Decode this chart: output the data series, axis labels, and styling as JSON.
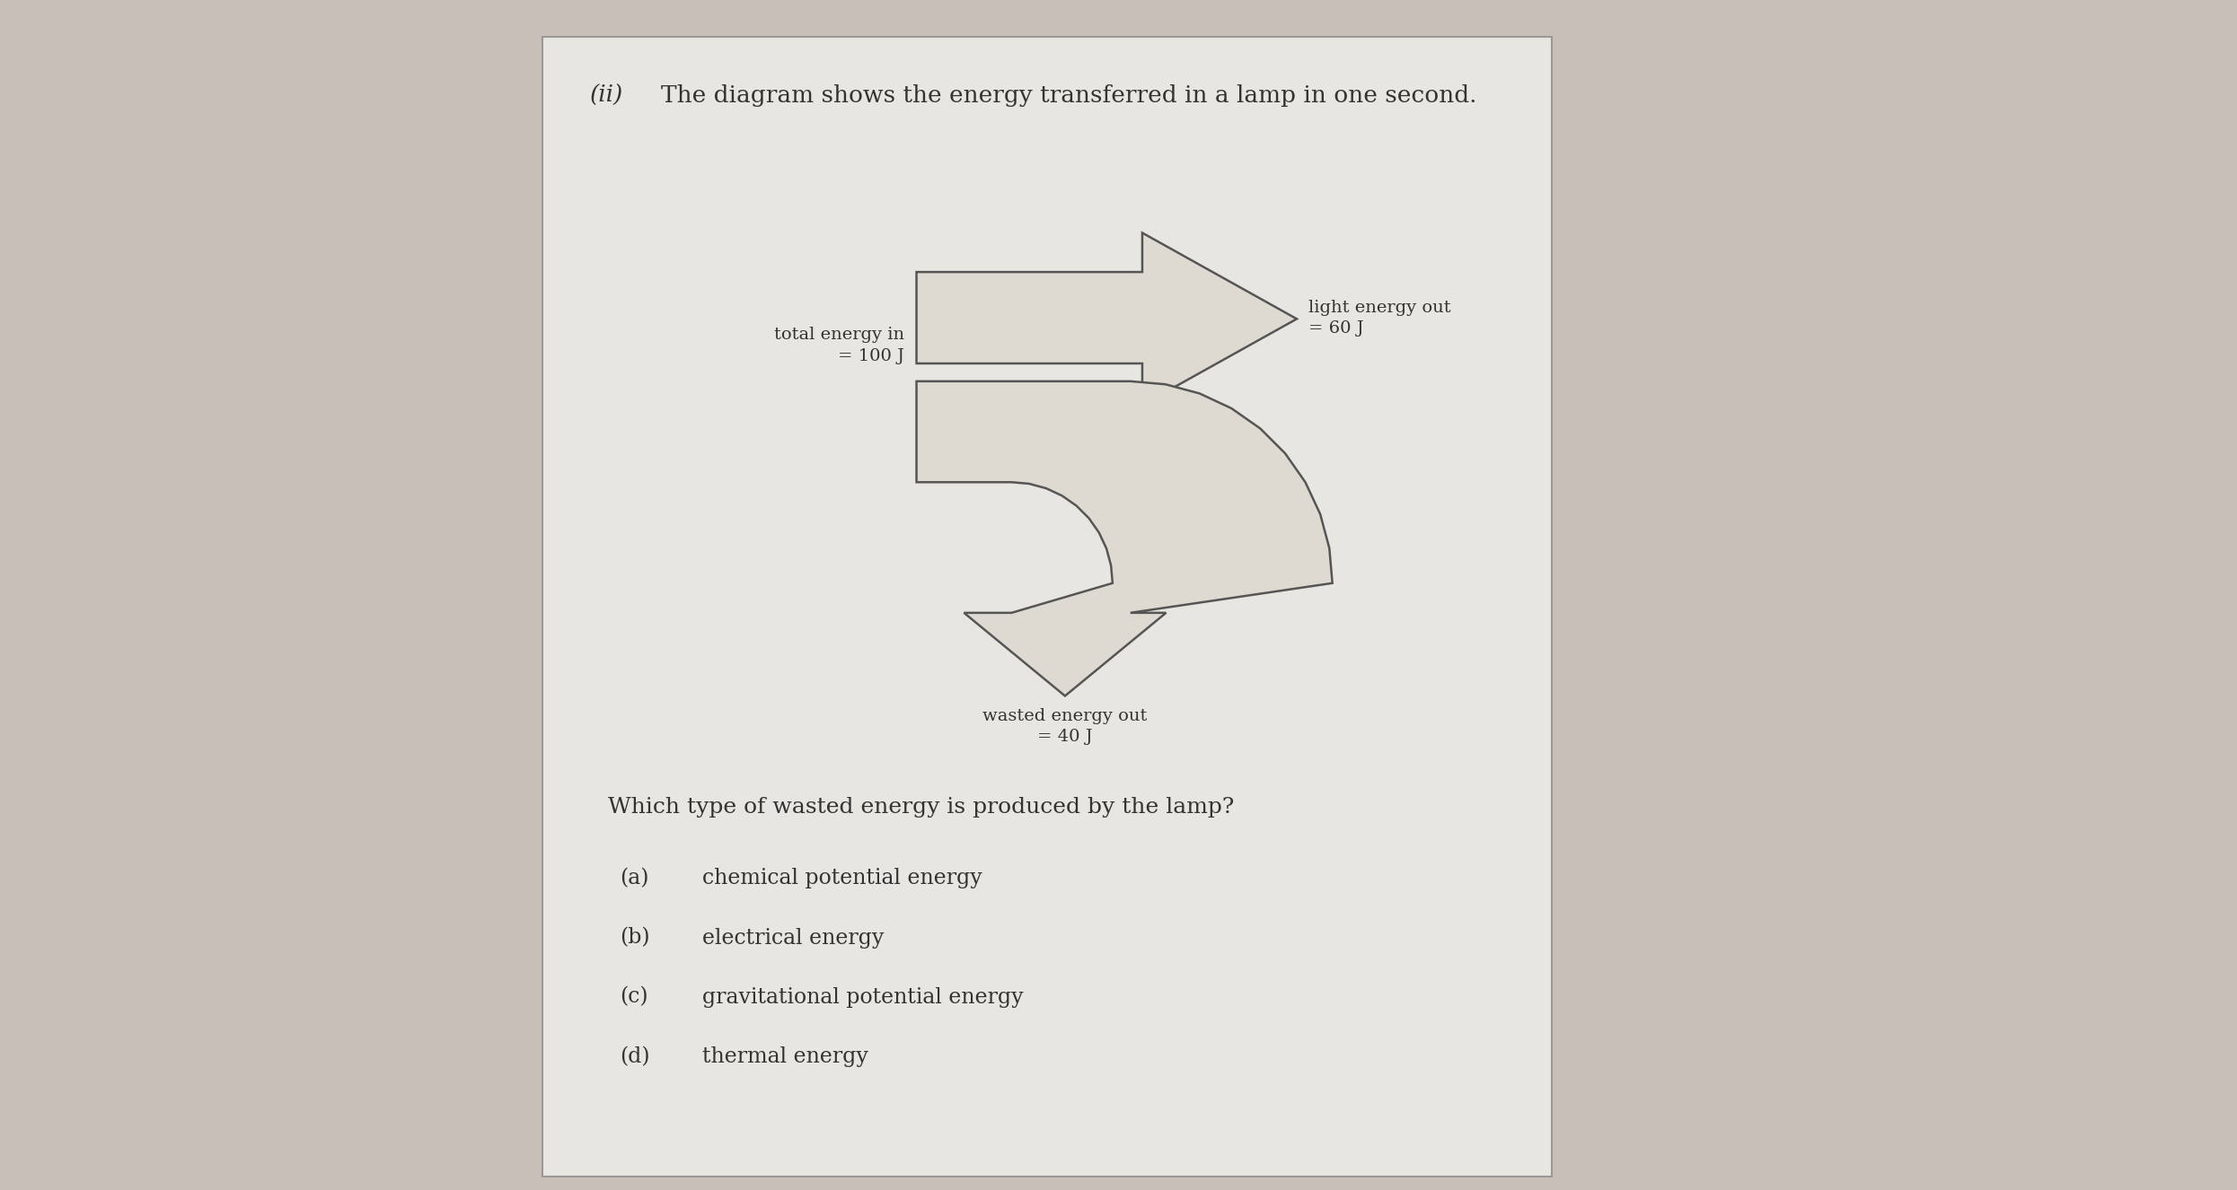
{
  "title_prefix": "(ii)",
  "title_text": "The diagram shows the energy transferred in a lamp in one second.",
  "bg_color": "#c8c0b8",
  "paper_color": "#e8e6e0",
  "arrow_fill": "#dedad2",
  "arrow_edge": "#555555",
  "text_color": "#333333",
  "label_total_energy": "total energy in\n= 100 J",
  "label_light_energy": "light energy out\n= 60 J",
  "label_wasted_energy": "wasted energy out\n= 40 J",
  "question": "Which type of wasted energy is produced by the lamp?",
  "options": [
    [
      "(a)",
      "chemical potential energy"
    ],
    [
      "(b)",
      "electrical energy"
    ],
    [
      "(c)",
      "gravitational potential energy"
    ],
    [
      "(d)",
      "thermal energy"
    ]
  ],
  "fig_width": 24.91,
  "fig_height": 13.26,
  "dpi": 100
}
